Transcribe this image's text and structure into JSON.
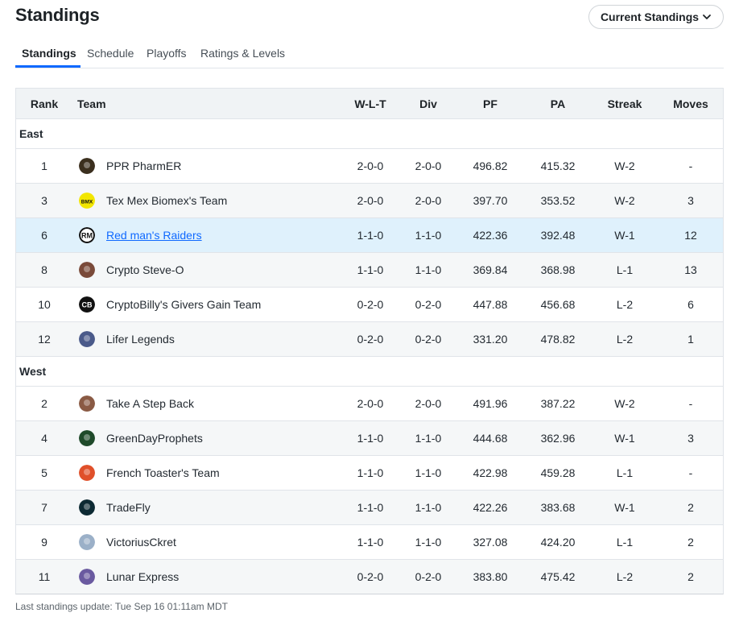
{
  "page": {
    "title": "Standings"
  },
  "dropdown": {
    "label": "Current Standings"
  },
  "tabs": [
    {
      "label": "Standings",
      "active": true
    },
    {
      "label": "Schedule",
      "active": false
    },
    {
      "label": "Playoffs",
      "active": false
    },
    {
      "label": "Ratings & Levels",
      "active": false
    }
  ],
  "columns": {
    "rank": "Rank",
    "team": "Team",
    "wlt": "W-L-T",
    "div": "Div",
    "pf": "PF",
    "pa": "PA",
    "streak": "Streak",
    "moves": "Moves"
  },
  "groups": [
    {
      "name": "East",
      "teams": [
        {
          "rank": "1",
          "name": "PPR PharmER",
          "wlt": "2-0-0",
          "div": "2-0-0",
          "pf": "496.82",
          "pa": "415.32",
          "streak": "W-2",
          "moves": "-",
          "logo_icon": "pharmer-logo-icon",
          "logo_color": "#3b2f1e"
        },
        {
          "rank": "3",
          "name": "Tex Mex Biomex's Team",
          "wlt": "2-0-0",
          "div": "2-0-0",
          "pf": "397.70",
          "pa": "353.52",
          "streak": "W-2",
          "moves": "3",
          "logo_icon": "bmx-logo-icon",
          "logo_color": "#f2e600",
          "logo_text": "BMX"
        },
        {
          "rank": "6",
          "name": "Red man's Raiders",
          "wlt": "1-1-0",
          "div": "1-1-0",
          "pf": "422.36",
          "pa": "392.48",
          "streak": "W-1",
          "moves": "12",
          "logo_icon": "rm-logo-icon",
          "logo_color": "#111111",
          "logo_text": "RM",
          "is_user_team": true
        },
        {
          "rank": "8",
          "name": "Crypto Steve-O",
          "wlt": "1-1-0",
          "div": "1-1-0",
          "pf": "369.84",
          "pa": "368.98",
          "streak": "L-1",
          "moves": "13",
          "logo_icon": "steve-o-logo-icon",
          "logo_color": "#7a4a3a"
        },
        {
          "rank": "10",
          "name": "CryptoBilly's Givers Gain Team",
          "wlt": "0-2-0",
          "div": "0-2-0",
          "pf": "447.88",
          "pa": "456.68",
          "streak": "L-2",
          "moves": "6",
          "logo_icon": "cb-logo-icon",
          "logo_color": "#111111",
          "logo_text": "CB"
        },
        {
          "rank": "12",
          "name": "Lifer Legends",
          "wlt": "0-2-0",
          "div": "0-2-0",
          "pf": "331.20",
          "pa": "478.82",
          "streak": "L-2",
          "moves": "1",
          "logo_icon": "lifer-logo-icon",
          "logo_color": "#4a5a8a"
        }
      ]
    },
    {
      "name": "West",
      "teams": [
        {
          "rank": "2",
          "name": "Take A Step Back",
          "wlt": "2-0-0",
          "div": "2-0-0",
          "pf": "491.96",
          "pa": "387.22",
          "streak": "W-2",
          "moves": "-",
          "logo_icon": "step-back-logo-icon",
          "logo_color": "#8a5a44"
        },
        {
          "rank": "4",
          "name": "GreenDayProphets",
          "wlt": "1-1-0",
          "div": "1-1-0",
          "pf": "444.68",
          "pa": "362.96",
          "streak": "W-1",
          "moves": "3",
          "logo_icon": "green-day-logo-icon",
          "logo_color": "#1f4a2a"
        },
        {
          "rank": "5",
          "name": "French Toaster's Team",
          "wlt": "1-1-0",
          "div": "1-1-0",
          "pf": "422.98",
          "pa": "459.28",
          "streak": "L-1",
          "moves": "-",
          "logo_icon": "french-toaster-logo-icon",
          "logo_color": "#e0502a"
        },
        {
          "rank": "7",
          "name": "TradeFly",
          "wlt": "1-1-0",
          "div": "1-1-0",
          "pf": "422.26",
          "pa": "383.68",
          "streak": "W-1",
          "moves": "2",
          "logo_icon": "tradefly-logo-icon",
          "logo_color": "#0d2a33"
        },
        {
          "rank": "9",
          "name": "VictoriusCkret",
          "wlt": "1-1-0",
          "div": "1-1-0",
          "pf": "327.08",
          "pa": "424.20",
          "streak": "L-1",
          "moves": "2",
          "logo_icon": "victorius-logo-icon",
          "logo_color": "#9bb0c8"
        },
        {
          "rank": "11",
          "name": "Lunar Express",
          "wlt": "0-2-0",
          "div": "0-2-0",
          "pf": "383.80",
          "pa": "475.42",
          "streak": "L-2",
          "moves": "2",
          "logo_icon": "lunar-logo-icon",
          "logo_color": "#6a5aa0"
        }
      ]
    }
  ],
  "footer": {
    "text": "Last standings update: Tue Sep 16 01:11am MDT"
  }
}
